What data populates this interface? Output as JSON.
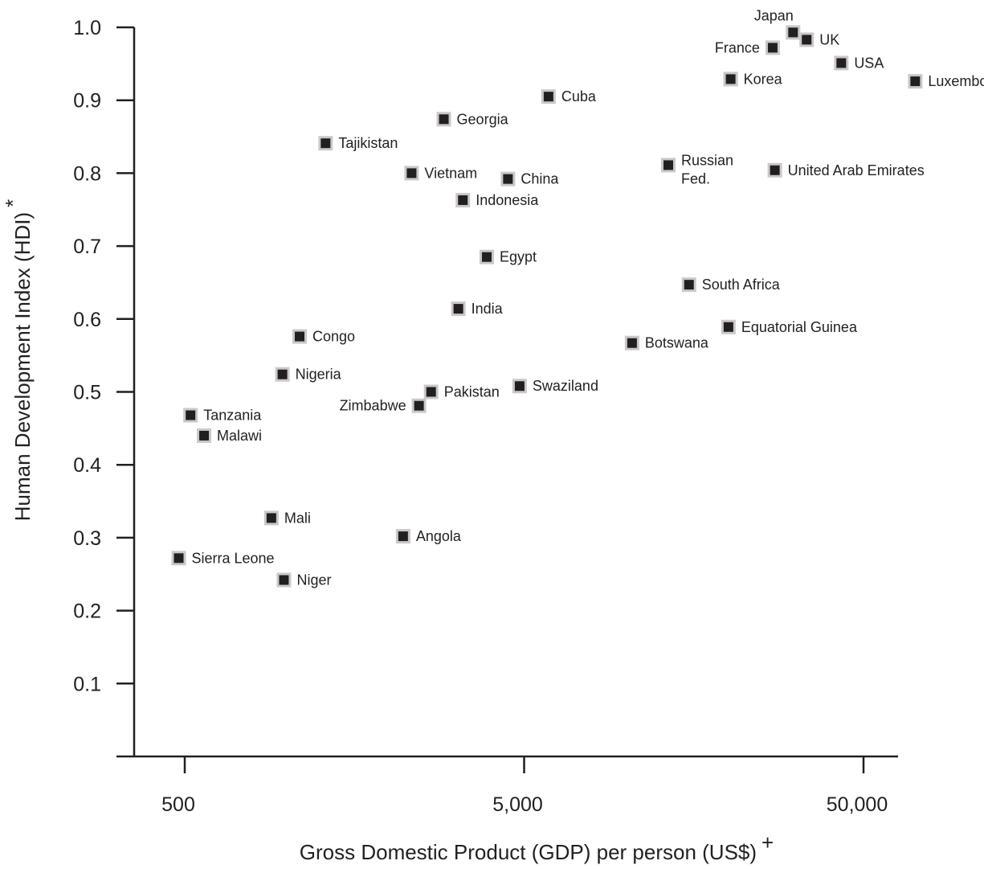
{
  "chart_data": {
    "type": "scatter",
    "x_scale": "log",
    "xlim": [
      360,
      62000
    ],
    "ylim": [
      0,
      1.0
    ],
    "grid": false,
    "xlabel": "Gross Domestic Product (GDP) per person (US$)",
    "xlabel_mark": "+",
    "ylabel": "Human Development Index (HDI)",
    "ylabel_mark": "*",
    "x_ticks": [
      500,
      5000,
      50000
    ],
    "x_tick_labels": [
      "500",
      "5,000",
      "50,000"
    ],
    "y_ticks": [
      0.1,
      0.2,
      0.3,
      0.4,
      0.5,
      0.6,
      0.7,
      0.8,
      0.9,
      1.0
    ],
    "y_tick_labels": [
      "0.1",
      "0.2",
      "0.3",
      "0.4",
      "0.5",
      "0.6",
      "0.7",
      "0.8",
      "0.9",
      "1.0"
    ],
    "marker_color": "#231f20",
    "marker_edge_color": "#c9c9c9",
    "points": [
      {
        "label": [
          "Japan"
        ],
        "x": 31000,
        "y": 0.993,
        "pos": "above"
      },
      {
        "label": [
          "UK"
        ],
        "x": 34000,
        "y": 0.983,
        "pos": "right"
      },
      {
        "label": [
          "France"
        ],
        "x": 27000,
        "y": 0.972,
        "pos": "left"
      },
      {
        "label": [
          "USA"
        ],
        "x": 43000,
        "y": 0.951,
        "pos": "right"
      },
      {
        "label": [
          "Korea"
        ],
        "x": 20300,
        "y": 0.929,
        "pos": "right"
      },
      {
        "label": [
          "Luxembourg"
        ],
        "x": 71000,
        "y": 0.926,
        "pos": "right"
      },
      {
        "label": [
          "Cuba"
        ],
        "x": 5900,
        "y": 0.905,
        "pos": "right"
      },
      {
        "label": [
          "Georgia"
        ],
        "x": 2900,
        "y": 0.874,
        "pos": "right"
      },
      {
        "label": [
          "Tajikistan"
        ],
        "x": 1300,
        "y": 0.841,
        "pos": "right"
      },
      {
        "label": [
          "Russian",
          "Fed."
        ],
        "x": 13300,
        "y": 0.811,
        "pos": "right"
      },
      {
        "label": [
          "United Arab Emirates"
        ],
        "x": 27400,
        "y": 0.804,
        "pos": "right"
      },
      {
        "label": [
          "Vietnam"
        ],
        "x": 2330,
        "y": 0.8,
        "pos": "right"
      },
      {
        "label": [
          "China"
        ],
        "x": 4480,
        "y": 0.792,
        "pos": "right"
      },
      {
        "label": [
          "Indonesia"
        ],
        "x": 3300,
        "y": 0.763,
        "pos": "right"
      },
      {
        "label": [
          "Egypt"
        ],
        "x": 3880,
        "y": 0.685,
        "pos": "right"
      },
      {
        "label": [
          "South Africa"
        ],
        "x": 15300,
        "y": 0.647,
        "pos": "right"
      },
      {
        "label": [
          "India"
        ],
        "x": 3200,
        "y": 0.614,
        "pos": "right"
      },
      {
        "label": [
          "Equatorial Guinea"
        ],
        "x": 20000,
        "y": 0.589,
        "pos": "right"
      },
      {
        "label": [
          "Congo"
        ],
        "x": 1090,
        "y": 0.576,
        "pos": "right"
      },
      {
        "label": [
          "Botswana"
        ],
        "x": 10400,
        "y": 0.567,
        "pos": "right"
      },
      {
        "label": [
          "Nigeria"
        ],
        "x": 970,
        "y": 0.524,
        "pos": "right"
      },
      {
        "label": [
          "Swaziland"
        ],
        "x": 4850,
        "y": 0.508,
        "pos": "right"
      },
      {
        "label": [
          "Pakistan"
        ],
        "x": 2660,
        "y": 0.5,
        "pos": "right"
      },
      {
        "label": [
          "Zimbabwe"
        ],
        "x": 2450,
        "y": 0.481,
        "pos": "left"
      },
      {
        "label": [
          "Tanzania"
        ],
        "x": 520,
        "y": 0.468,
        "pos": "right"
      },
      {
        "label": [
          "Malawi"
        ],
        "x": 570,
        "y": 0.44,
        "pos": "right"
      },
      {
        "label": [
          "Mali"
        ],
        "x": 900,
        "y": 0.327,
        "pos": "right"
      },
      {
        "label": [
          "Angola"
        ],
        "x": 2200,
        "y": 0.302,
        "pos": "right"
      },
      {
        "label": [
          "Sierra Leone"
        ],
        "x": 480,
        "y": 0.272,
        "pos": "right"
      },
      {
        "label": [
          "Niger"
        ],
        "x": 980,
        "y": 0.242,
        "pos": "right"
      }
    ]
  }
}
